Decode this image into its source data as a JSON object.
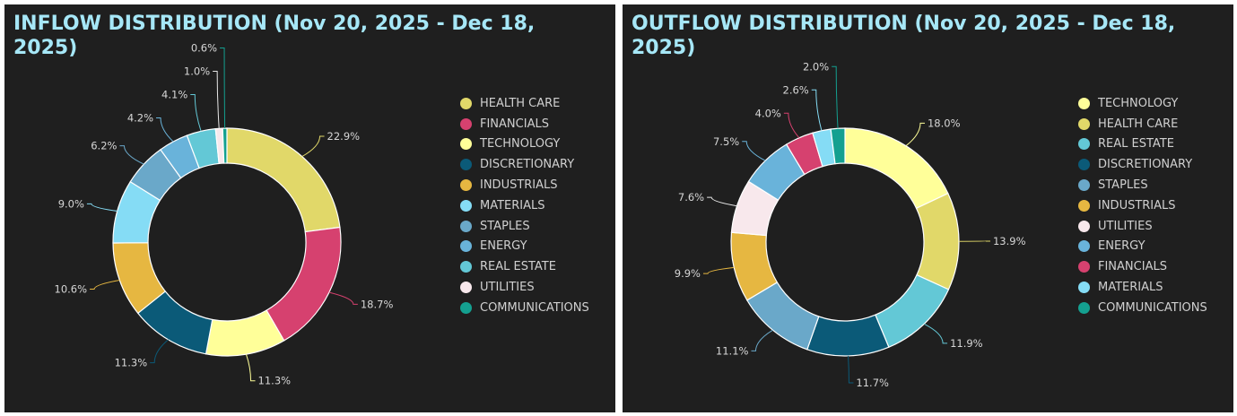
{
  "chart_data": [
    {
      "type": "pie",
      "title": "INFLOW DISTRIBUTION (Nov 20, 2025 - Dec 18, 2025)",
      "legend": "right",
      "donut": true,
      "categories": [
        "HEALTH CARE",
        "FINANCIALS",
        "TECHNOLOGY",
        "DISCRETIONARY",
        "INDUSTRIALS",
        "MATERIALS",
        "STAPLES",
        "ENERGY",
        "REAL ESTATE",
        "UTILITIES",
        "COMMUNICATIONS"
      ],
      "values": [
        22.9,
        18.7,
        11.3,
        11.3,
        10.6,
        9.0,
        6.2,
        4.2,
        4.1,
        1.0,
        0.6
      ],
      "labels": [
        "22.9%",
        "18.7%",
        "11.3%",
        "11.3%",
        "10.6%",
        "9.0%",
        "6.2%",
        "4.2%",
        "4.1%",
        "1.0%",
        "0.6%"
      ],
      "colors": [
        "#e1d869",
        "#d6416f",
        "#ffff99",
        "#0b5a78",
        "#e6b741",
        "#85dcf5",
        "#6aa8c9",
        "#69b3da",
        "#63c8d6",
        "#f8e8ec",
        "#14a090"
      ]
    },
    {
      "type": "pie",
      "title": "OUTFLOW DISTRIBUTION (Nov 20, 2025 - Dec 18, 2025)",
      "legend": "right",
      "donut": true,
      "categories": [
        "TECHNOLOGY",
        "HEALTH CARE",
        "REAL ESTATE",
        "DISCRETIONARY",
        "STAPLES",
        "INDUSTRIALS",
        "UTILITIES",
        "ENERGY",
        "FINANCIALS",
        "MATERIALS",
        "COMMUNICATIONS"
      ],
      "values": [
        18.0,
        13.9,
        11.9,
        11.7,
        11.1,
        9.9,
        7.6,
        7.5,
        4.0,
        2.6,
        2.0
      ],
      "labels": [
        "18.0%",
        "13.9%",
        "11.9%",
        "11.7%",
        "11.1%",
        "9.9%",
        "7.6%",
        "7.5%",
        "4.0%",
        "2.6%",
        "2.0%"
      ],
      "colors": [
        "#ffff99",
        "#e1d869",
        "#63c8d6",
        "#0b5a78",
        "#6aa8c9",
        "#e6b741",
        "#f8e8ec",
        "#69b3da",
        "#d6416f",
        "#85dcf5",
        "#14a090"
      ]
    }
  ]
}
